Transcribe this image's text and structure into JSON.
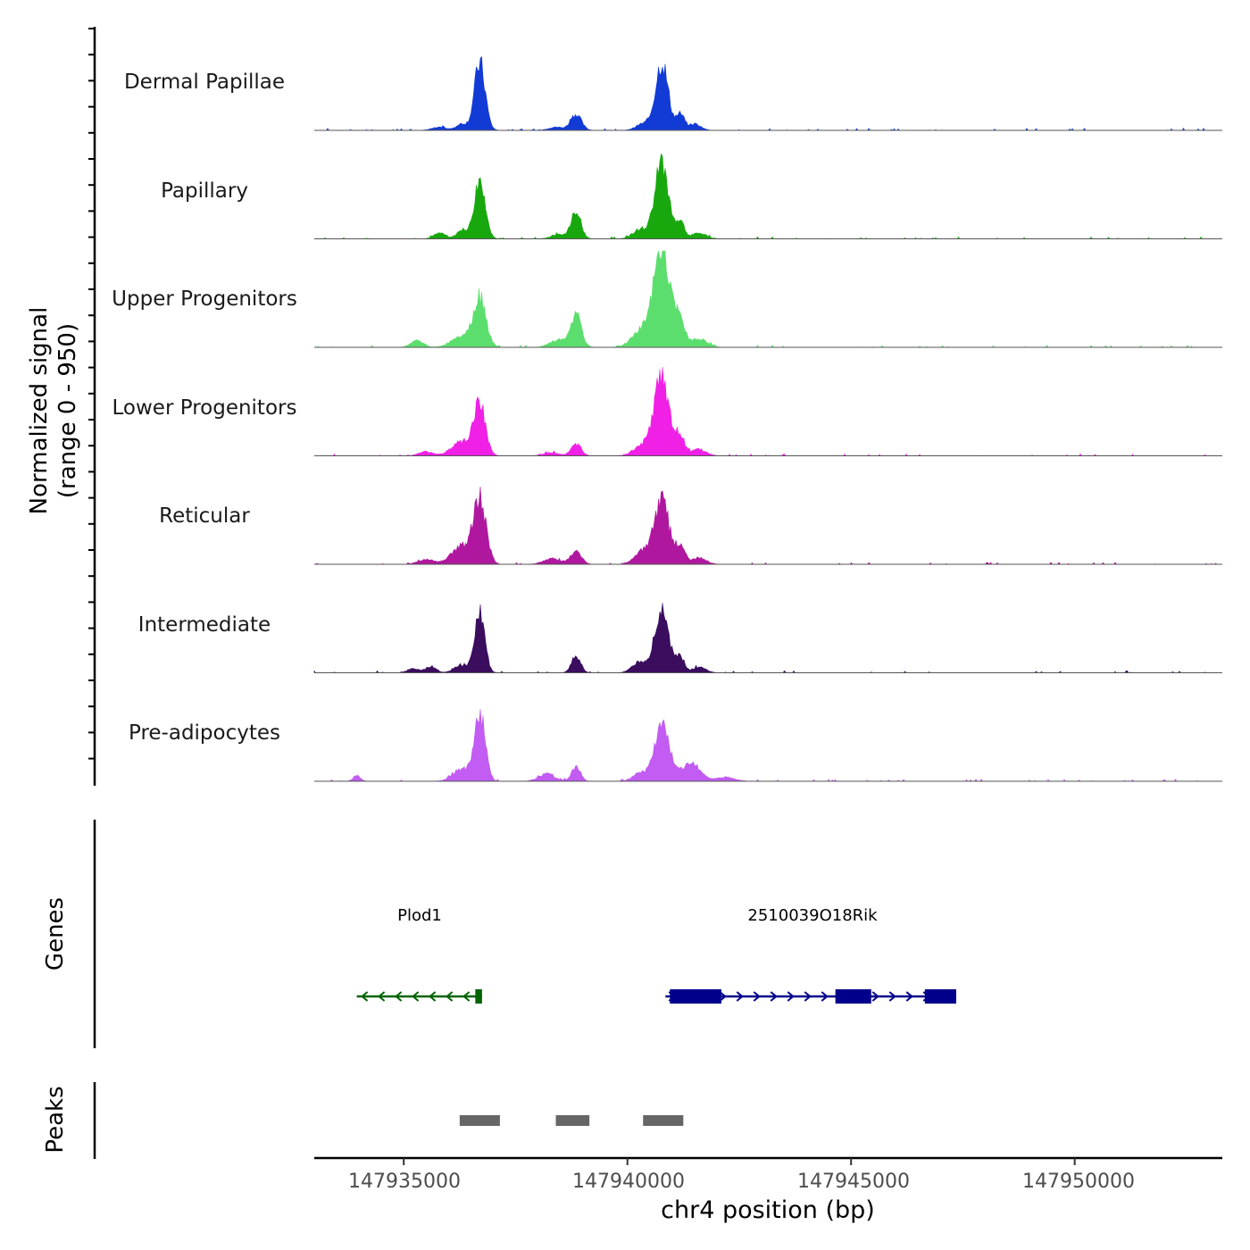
{
  "chart_data": {
    "type": "area",
    "title": "",
    "ylabel_line1": "Normalized signal",
    "ylabel_line2": "(range 0 - 950)",
    "xlabel": "chr4 position (bp)",
    "genes_label": "Genes",
    "peaks_label": "Peaks",
    "xlim": [
      147933000,
      147953300
    ],
    "x_ticks": [
      147935000,
      147940000,
      147945000,
      147950000
    ],
    "x_tick_labels": [
      "147935000",
      "147940000",
      "147945000",
      "147950000"
    ],
    "ylim": [
      0,
      950
    ],
    "tracks": [
      {
        "name": "Dermal Papillae",
        "color": "#123BD6",
        "peaks": [
          {
            "x": 147936700,
            "y": 830,
            "w": 120
          },
          {
            "x": 147940770,
            "y": 840,
            "w": 140
          },
          {
            "x": 147938850,
            "y": 200,
            "w": 120
          },
          {
            "x": 147941180,
            "y": 190,
            "w": 90
          },
          {
            "x": 147936300,
            "y": 80,
            "w": 120
          },
          {
            "x": 147940350,
            "y": 80,
            "w": 160
          },
          {
            "x": 147941500,
            "y": 80,
            "w": 140
          },
          {
            "x": 147935800,
            "y": 40,
            "w": 160
          },
          {
            "x": 147938400,
            "y": 40,
            "w": 160
          }
        ]
      },
      {
        "name": "Papillary",
        "color": "#18A80E",
        "peaks": [
          {
            "x": 147936700,
            "y": 760,
            "w": 120
          },
          {
            "x": 147940770,
            "y": 950,
            "w": 150
          },
          {
            "x": 147938850,
            "y": 340,
            "w": 110
          },
          {
            "x": 147941180,
            "y": 220,
            "w": 90
          },
          {
            "x": 147936300,
            "y": 110,
            "w": 120
          },
          {
            "x": 147940300,
            "y": 120,
            "w": 170
          },
          {
            "x": 147941600,
            "y": 70,
            "w": 160
          },
          {
            "x": 147935800,
            "y": 70,
            "w": 130
          },
          {
            "x": 147938450,
            "y": 50,
            "w": 160
          }
        ]
      },
      {
        "name": "Upper Progenitors",
        "color": "#5CDE6E",
        "peaks": [
          {
            "x": 147936700,
            "y": 590,
            "w": 140
          },
          {
            "x": 147940770,
            "y": 1200,
            "w": 180
          },
          {
            "x": 147938850,
            "y": 390,
            "w": 120
          },
          {
            "x": 147941180,
            "y": 320,
            "w": 110
          },
          {
            "x": 147936300,
            "y": 150,
            "w": 220
          },
          {
            "x": 147940300,
            "y": 200,
            "w": 200
          },
          {
            "x": 147941600,
            "y": 110,
            "w": 180
          },
          {
            "x": 147935300,
            "y": 80,
            "w": 140
          },
          {
            "x": 147938450,
            "y": 90,
            "w": 180
          }
        ]
      },
      {
        "name": "Lower Progenitors",
        "color": "#F020E6",
        "peaks": [
          {
            "x": 147936700,
            "y": 620,
            "w": 130
          },
          {
            "x": 147940770,
            "y": 970,
            "w": 170
          },
          {
            "x": 147938850,
            "y": 150,
            "w": 110
          },
          {
            "x": 147941180,
            "y": 230,
            "w": 100
          },
          {
            "x": 147936300,
            "y": 180,
            "w": 220
          },
          {
            "x": 147940300,
            "y": 120,
            "w": 180
          },
          {
            "x": 147941600,
            "y": 80,
            "w": 160
          },
          {
            "x": 147935500,
            "y": 50,
            "w": 160
          },
          {
            "x": 147938300,
            "y": 40,
            "w": 160
          }
        ]
      },
      {
        "name": "Reticular",
        "color": "#B0179F",
        "peaks": [
          {
            "x": 147936700,
            "y": 770,
            "w": 140
          },
          {
            "x": 147940770,
            "y": 800,
            "w": 160
          },
          {
            "x": 147938850,
            "y": 170,
            "w": 120
          },
          {
            "x": 147941180,
            "y": 240,
            "w": 100
          },
          {
            "x": 147936300,
            "y": 220,
            "w": 230
          },
          {
            "x": 147940350,
            "y": 160,
            "w": 180
          },
          {
            "x": 147941600,
            "y": 80,
            "w": 160
          },
          {
            "x": 147935500,
            "y": 60,
            "w": 180
          },
          {
            "x": 147938300,
            "y": 70,
            "w": 180
          }
        ]
      },
      {
        "name": "Intermediate",
        "color": "#3A0D5E",
        "peaks": [
          {
            "x": 147936700,
            "y": 770,
            "w": 110
          },
          {
            "x": 147940770,
            "y": 800,
            "w": 150
          },
          {
            "x": 147938850,
            "y": 220,
            "w": 100
          },
          {
            "x": 147941180,
            "y": 200,
            "w": 90
          },
          {
            "x": 147936300,
            "y": 100,
            "w": 160
          },
          {
            "x": 147940300,
            "y": 140,
            "w": 170
          },
          {
            "x": 147941600,
            "y": 70,
            "w": 150
          },
          {
            "x": 147935600,
            "y": 80,
            "w": 120
          },
          {
            "x": 147935200,
            "y": 50,
            "w": 120
          }
        ]
      },
      {
        "name": "Pre-adipocytes",
        "color": "#C25CF2",
        "peaks": [
          {
            "x": 147936700,
            "y": 820,
            "w": 120
          },
          {
            "x": 147940770,
            "y": 720,
            "w": 160
          },
          {
            "x": 147938850,
            "y": 170,
            "w": 100
          },
          {
            "x": 147941400,
            "y": 220,
            "w": 220
          },
          {
            "x": 147936300,
            "y": 150,
            "w": 200
          },
          {
            "x": 147940300,
            "y": 100,
            "w": 170
          },
          {
            "x": 147933950,
            "y": 70,
            "w": 80
          },
          {
            "x": 147938200,
            "y": 90,
            "w": 180
          },
          {
            "x": 147942200,
            "y": 50,
            "w": 200
          }
        ]
      }
    ],
    "genes": [
      {
        "name": "Plod1",
        "strand": "-",
        "color": "#006400",
        "start": 147933950,
        "end": 147936750,
        "exons": [
          [
            147936600,
            147936750
          ]
        ]
      },
      {
        "name": "2510039O18Rik",
        "strand": "+",
        "color": "#00008B",
        "start": 147940850,
        "end": 147947350,
        "exons": [
          [
            147940950,
            147942100
          ],
          [
            147944650,
            147945450
          ],
          [
            147946650,
            147947350
          ]
        ]
      }
    ],
    "peak_regions": [
      [
        147936250,
        147937150
      ],
      [
        147938400,
        147939150
      ],
      [
        147940350,
        147941250
      ]
    ]
  }
}
